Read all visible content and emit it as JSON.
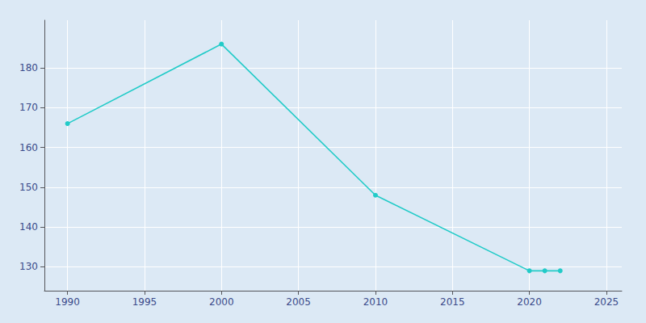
{
  "chart_data": {
    "type": "line",
    "x": [
      1990,
      2000,
      2010,
      2020,
      2021,
      2022
    ],
    "values": [
      166,
      186,
      148,
      129,
      129,
      129
    ],
    "color": "#22cbc8",
    "marker": "circle",
    "xlim": [
      1988.5,
      2026
    ],
    "ylim": [
      124,
      192
    ],
    "xticks": [
      1990,
      1995,
      2000,
      2005,
      2010,
      2015,
      2020,
      2025
    ],
    "yticks": [
      130,
      140,
      150,
      160,
      170,
      180
    ],
    "grid": true
  }
}
